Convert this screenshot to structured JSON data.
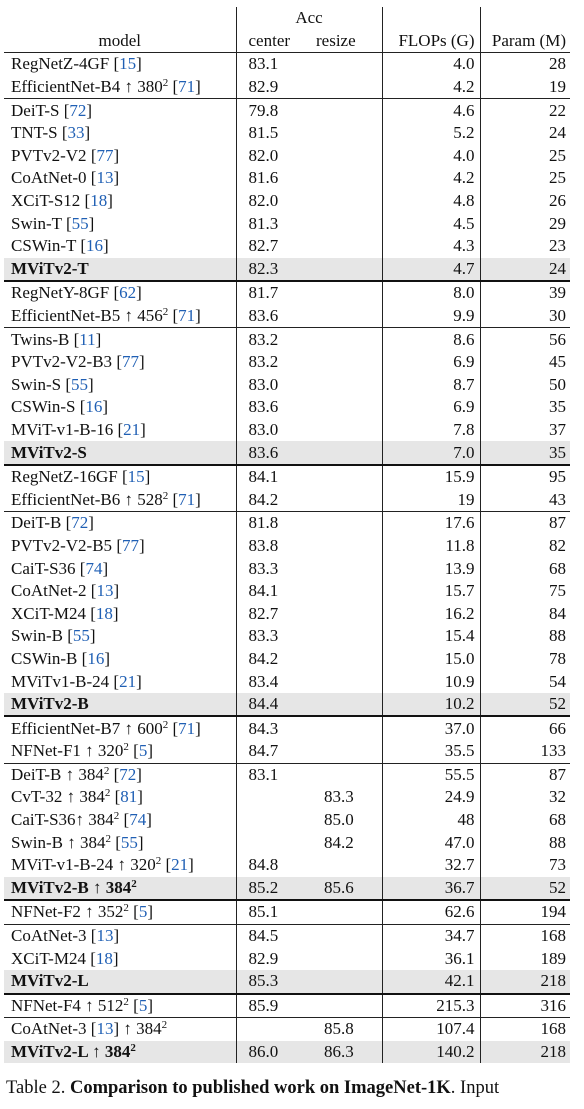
{
  "header": {
    "model": "model",
    "acc": "Acc",
    "center": "center",
    "resize": "resize",
    "flops": "FLOPs (G)",
    "params": "Param (M)"
  },
  "colors": {
    "reference": "#1f5fb4",
    "highlight_row": "#e6e6e6"
  },
  "groups": [
    {
      "rows": [
        {
          "name": "RegNetZ-4GF",
          "ref": "15",
          "center": "83.1",
          "center_bold": true,
          "resize": "",
          "flops": "4.0",
          "params": "28"
        },
        {
          "name": "EfficientNet-B4 ↑ 380",
          "sup": "2",
          "ref": "71",
          "center": "82.9",
          "resize": "",
          "flops": "4.2",
          "params": "19"
        }
      ]
    },
    {
      "rows": [
        {
          "name": "DeiT-S",
          "ref": "72",
          "center": "79.8",
          "resize": "",
          "flops": "4.6",
          "params": "22"
        },
        {
          "name": "TNT-S",
          "ref": "33",
          "center": "81.5",
          "resize": "",
          "flops": "5.2",
          "params": "24"
        },
        {
          "name": "PVTv2-V2",
          "ref": "77",
          "center": "82.0",
          "resize": "",
          "flops": "4.0",
          "params": "25"
        },
        {
          "name": "CoAtNet-0",
          "ref": "13",
          "center": "81.6",
          "resize": "",
          "flops": "4.2",
          "params": "25"
        },
        {
          "name": "XCiT-S12",
          "ref": "18",
          "center": "82.0",
          "resize": "",
          "flops": "4.8",
          "params": "26"
        },
        {
          "name": "Swin-T",
          "ref": "55",
          "center": "81.3",
          "resize": "",
          "flops": "4.5",
          "params": "29"
        },
        {
          "name": "CSWin-T",
          "ref": "16",
          "center": "82.7",
          "resize": "",
          "flops": "4.3",
          "params": "23"
        },
        {
          "name": "MViTv2-T",
          "name_bold": true,
          "highlight": true,
          "center": "82.3",
          "resize": "",
          "flops": "4.7",
          "params": "24"
        }
      ]
    },
    {
      "thick": true,
      "rows": [
        {
          "name": "RegNetY-8GF",
          "ref": "62",
          "center": "81.7",
          "resize": "",
          "flops": "8.0",
          "params": "39"
        },
        {
          "name": "EfficientNet-B5 ↑ 456",
          "sup": "2",
          "ref": "71",
          "center": "83.6",
          "center_bold": true,
          "resize": "",
          "flops": "9.9",
          "params": "30"
        }
      ]
    },
    {
      "rows": [
        {
          "name": "Twins-B",
          "ref": "11",
          "center": "83.2",
          "resize": "",
          "flops": "8.6",
          "params": "56"
        },
        {
          "name": "PVTv2-V2-B3",
          "ref": "77",
          "center": "83.2",
          "resize": "",
          "flops": "6.9",
          "params": "45"
        },
        {
          "name": "Swin-S",
          "ref": "55",
          "center": "83.0",
          "resize": "",
          "flops": "8.7",
          "params": "50"
        },
        {
          "name": "CSWin-S",
          "ref": "16",
          "center": "83.6",
          "center_bold": true,
          "resize": "",
          "flops": "6.9",
          "params": "35"
        },
        {
          "name": "MViT-v1-B-16",
          "ref": "21",
          "center": "83.0",
          "resize": "",
          "flops": "7.8",
          "params": "37"
        },
        {
          "name": "MViTv2-S",
          "name_bold": true,
          "highlight": true,
          "center": "83.6",
          "center_bold": true,
          "resize": "",
          "flops": "7.0",
          "params": "35"
        }
      ]
    },
    {
      "thick": true,
      "rows": [
        {
          "name": "RegNetZ-16GF",
          "ref": "15",
          "center": "84.1",
          "resize": "",
          "flops": "15.9",
          "params": "95"
        },
        {
          "name": "EfficientNet-B6 ↑ 528",
          "sup": "2",
          "ref": "71",
          "center": "84.2",
          "resize": "",
          "flops": "19",
          "params": "43"
        }
      ]
    },
    {
      "rows": [
        {
          "name": "DeiT-B",
          "ref": "72",
          "center": "81.8",
          "resize": "",
          "flops": "17.6",
          "params": "87"
        },
        {
          "name": "PVTv2-V2-B5",
          "ref": "77",
          "center": "83.8",
          "resize": "",
          "flops": "11.8",
          "params": "82"
        },
        {
          "name": "CaiT-S36",
          "ref": "74",
          "center": "83.3",
          "resize": "",
          "flops": "13.9",
          "params": "68"
        },
        {
          "name": "CoAtNet-2",
          "ref": "13",
          "center": "84.1",
          "resize": "",
          "flops": "15.7",
          "params": "75"
        },
        {
          "name": "XCiT-M24",
          "ref": "18",
          "center": "82.7",
          "resize": "",
          "flops": "16.2",
          "params": "84"
        },
        {
          "name": "Swin-B",
          "ref": "55",
          "center": "83.3",
          "resize": "",
          "flops": "15.4",
          "params": "88"
        },
        {
          "name": "CSWin-B",
          "ref": "16",
          "center": "84.2",
          "resize": "",
          "flops": "15.0",
          "params": "78"
        },
        {
          "name": "MViTv1-B-24",
          "ref": "21",
          "center": "83.4",
          "resize": "",
          "flops": "10.9",
          "params": "54"
        },
        {
          "name": "MViTv2-B",
          "name_bold": true,
          "highlight": true,
          "center": "84.4",
          "center_bold": true,
          "resize": "",
          "flops": "10.2",
          "params": "52"
        }
      ]
    },
    {
      "thick": true,
      "rows": [
        {
          "name": "EfficientNet-B7 ↑ 600",
          "sup": "2",
          "ref": "71",
          "center": "84.3",
          "resize": "",
          "flops": "37.0",
          "params": "66"
        },
        {
          "name": "NFNet-F1 ↑ 320",
          "sup": "2",
          "ref": "5",
          "center": "84.7",
          "resize": "",
          "flops": "35.5",
          "params": "133"
        }
      ]
    },
    {
      "rows": [
        {
          "name": "DeiT-B ↑ 384",
          "sup": "2",
          "ref": "72",
          "center": "83.1",
          "resize": "",
          "flops": "55.5",
          "params": "87"
        },
        {
          "name": "CvT-32 ↑ 384",
          "sup": "2",
          "ref": "81",
          "center": "",
          "resize": "83.3",
          "flops": "24.9",
          "params": "32"
        },
        {
          "name": "CaiT-S36↑ 384",
          "sup": "2",
          "ref": "74",
          "center": "",
          "resize": "85.0",
          "flops": "48",
          "params": "68"
        },
        {
          "name": "Swin-B ↑ 384",
          "sup": "2",
          "ref": "55",
          "center": "",
          "resize": "84.2",
          "flops": "47.0",
          "params": "88"
        },
        {
          "name": "MViT-v1-B-24 ↑ 320",
          "sup": "2",
          "ref": "21",
          "center": "84.8",
          "resize": "",
          "flops": "32.7",
          "params": "73"
        },
        {
          "name": "MViTv2-B ↑ 384",
          "sup": "2",
          "name_bold": true,
          "highlight": true,
          "center": "85.2",
          "center_bold": true,
          "resize": "85.6",
          "resize_bold": true,
          "flops": "36.7",
          "params": "52"
        }
      ]
    },
    {
      "thick": true,
      "rows": [
        {
          "name": "NFNet-F2 ↑ 352",
          "sup": "2",
          "ref": "5",
          "center": "85.1",
          "resize": "",
          "flops": "62.6",
          "params": "194"
        }
      ]
    },
    {
      "rows": [
        {
          "name": "CoAtNet-3",
          "ref": "13",
          "center": "84.5",
          "resize": "",
          "flops": "34.7",
          "params": "168"
        },
        {
          "name": "XCiT-M24",
          "ref": "18",
          "center": "82.9",
          "resize": "",
          "flops": "36.1",
          "params": "189"
        },
        {
          "name": "MViTv2-L",
          "name_bold": true,
          "highlight": true,
          "center": "85.3",
          "center_bold": true,
          "resize": "",
          "flops": "42.1",
          "params": "218"
        }
      ]
    },
    {
      "thick": true,
      "rows": [
        {
          "name": "NFNet-F4 ↑ 512",
          "sup": "2",
          "ref": "5",
          "center": "85.9",
          "resize": "",
          "flops": "215.3",
          "params": "316"
        }
      ]
    },
    {
      "rows": [
        {
          "name": "CoAtNet-3",
          "ref": "13",
          "name_after": " ↑ 384",
          "sup_after": "2",
          "center": "",
          "resize": "85.8",
          "flops": "107.4",
          "params": "168"
        },
        {
          "name": "MViTv2-L ↑ 384",
          "sup": "2",
          "name_bold": true,
          "highlight": true,
          "center": "86.0",
          "center_bold": true,
          "resize": "86.3",
          "resize_bold": true,
          "flops": "140.2",
          "params": "218"
        }
      ]
    }
  ],
  "caption": {
    "label": "Table 2.",
    "title": "Comparison to published work on ImageNet-1K",
    "rest": ". Input"
  }
}
